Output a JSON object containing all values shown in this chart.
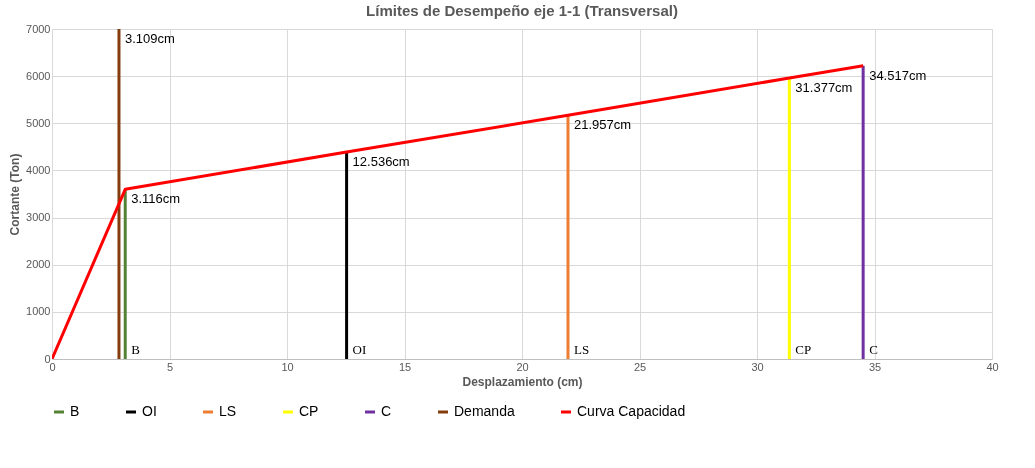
{
  "chart_data": {
    "type": "line",
    "title": "Límites de Desempeño eje 1-1 (Transversal)",
    "xlabel": "Desplazamiento (cm)",
    "ylabel": "Cortante (Ton)",
    "xlim": [
      0,
      40
    ],
    "xticks": [
      0,
      5,
      10,
      15,
      20,
      25,
      30,
      35,
      40
    ],
    "ylim": [
      0,
      7000
    ],
    "yticks": [
      0,
      1000,
      2000,
      3000,
      4000,
      5000,
      6000,
      7000
    ],
    "grid": true,
    "legend": "bottom",
    "marker": "none",
    "line_style": "solid",
    "series": [
      {
        "name": "B",
        "color": "#548235",
        "x": [
          3.116,
          3.116
        ],
        "values": [
          0,
          3600
        ]
      },
      {
        "name": "OI",
        "color": "#000000",
        "x": [
          12.536,
          12.536
        ],
        "values": [
          0,
          4390
        ]
      },
      {
        "name": "LS",
        "color": "#ed7d31",
        "x": [
          21.957,
          21.957
        ],
        "values": [
          0,
          5170
        ]
      },
      {
        "name": "CP",
        "color": "#ffff00",
        "x": [
          31.377,
          31.377
        ],
        "values": [
          0,
          5960
        ]
      },
      {
        "name": "C",
        "color": "#7030a0",
        "x": [
          34.517,
          34.517
        ],
        "values": [
          0,
          6220
        ]
      },
      {
        "name": "Demanda",
        "color": "#843c0c",
        "x": [
          2.85,
          2.85
        ],
        "values": [
          0,
          7000
        ]
      },
      {
        "name": "Curva Capacidad",
        "color": "#ff0000",
        "x": [
          0,
          3.116,
          12.536,
          21.957,
          31.377,
          34.517
        ],
        "values": [
          0,
          3600,
          4390,
          5170,
          5960,
          6220
        ]
      }
    ],
    "annotations": [
      {
        "text": "3.109cm",
        "x": 2.85,
        "y": 7000
      },
      {
        "text": "3.116cm",
        "x": 3.116,
        "y": 3600
      },
      {
        "text": "12.536cm",
        "x": 12.536,
        "y": 4390
      },
      {
        "text": "21.957cm",
        "x": 21.957,
        "y": 5170
      },
      {
        "text": "31.377cm",
        "x": 31.377,
        "y": 5960
      },
      {
        "text": "34.517cm",
        "x": 34.517,
        "y": 6220
      },
      {
        "text": "B",
        "x": 3.116,
        "y": 0
      },
      {
        "text": "OI",
        "x": 12.536,
        "y": 0
      },
      {
        "text": "LS",
        "x": 21.957,
        "y": 0
      },
      {
        "text": "CP",
        "x": 31.377,
        "y": 0
      },
      {
        "text": "C",
        "x": 34.517,
        "y": 0
      }
    ]
  }
}
